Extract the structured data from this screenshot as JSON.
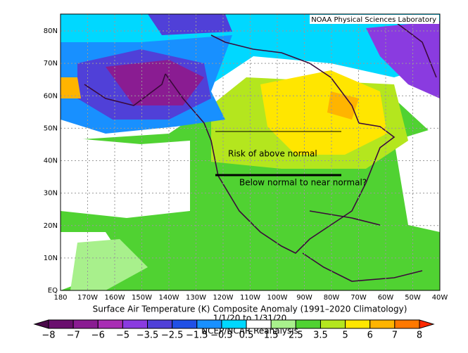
{
  "header": {
    "lab": "NOAA Physical Sciences Laboratory"
  },
  "lat_labels": [
    "80N",
    "70N",
    "60N",
    "50N",
    "40N",
    "30N",
    "20N",
    "10N",
    "EQ"
  ],
  "lon_labels": [
    "180",
    "170W",
    "160W",
    "150W",
    "140W",
    "130W",
    "120W",
    "110W",
    "100W",
    "90W",
    "80W",
    "70W",
    "60W",
    "50W",
    "40W"
  ],
  "footer": {
    "title": "Surface Air Temperature (K) Composite Anomaly (1991–2020 Climatology)",
    "dates": "1/1/20  to 1/31/20",
    "source": "NCEP/NCAR Reanalysis"
  },
  "annotations": [
    "Risk of above normal",
    "Below normal to near normal?"
  ],
  "colorbar": {
    "labels": [
      "−8",
      "−7",
      "−6",
      "−5",
      "−3.5",
      "−2.5",
      "−1.5",
      "−0.5",
      "0.5",
      "1.5",
      "2.5",
      "3.5",
      "5",
      "6",
      "7",
      "8"
    ],
    "colors": [
      "#4a0a4a",
      "#6a0f6e",
      "#8a1c92",
      "#a82db4",
      "#8a3be0",
      "#5040d8",
      "#2050e6",
      "#1890ff",
      "#00d8ff",
      "#ffffff",
      "#a8f08c",
      "#50d232",
      "#b4e61e",
      "#ffe600",
      "#ffb400",
      "#ff7800",
      "#ff2800"
    ]
  }
}
